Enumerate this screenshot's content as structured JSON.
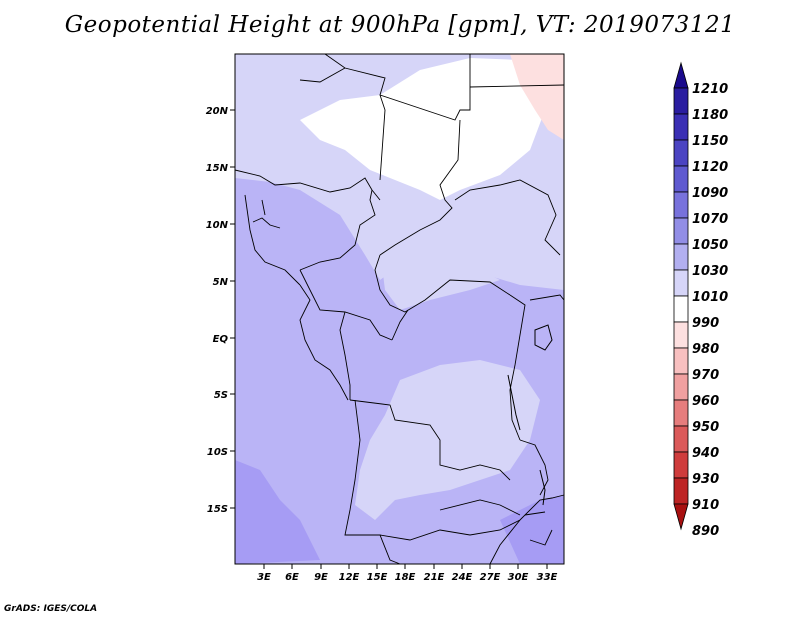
{
  "title": "Geopotential Height at 900hPa [gpm], VT: 2019073121",
  "footer": "GrADS: IGES/COLA",
  "axes": {
    "lat_ticks": [
      "20N",
      "15N",
      "10N",
      "5N",
      "EQ",
      "5S",
      "10S",
      "15S"
    ],
    "lon_ticks": [
      "3E",
      "6E",
      "9E",
      "12E",
      "15E",
      "18E",
      "21E",
      "24E",
      "27E",
      "30E",
      "33E"
    ]
  },
  "colorbar": {
    "levels": [
      "1210",
      "1180",
      "1150",
      "1120",
      "1090",
      "1070",
      "1050",
      "1030",
      "1010",
      "990",
      "980",
      "970",
      "960",
      "950",
      "940",
      "930",
      "910",
      "890"
    ],
    "colors": [
      "#1a0a8c",
      "#2a1da0",
      "#3a2fb4",
      "#4b44c2",
      "#5f5ad0",
      "#7872dc",
      "#928ee6",
      "#b2aff0",
      "#d6d5f8",
      "#ffffff",
      "#fde0e0",
      "#f8c0c0",
      "#f0a0a0",
      "#e67d7d",
      "#db5a5a",
      "#cf3c3c",
      "#bd2424",
      "#a81010"
    ]
  },
  "field_colors": {
    "deep": "#a69cf4",
    "mid": "#bab4f6",
    "light": "#d6d5f8",
    "white": "#ffffff",
    "pink": "#fde0e0"
  }
}
